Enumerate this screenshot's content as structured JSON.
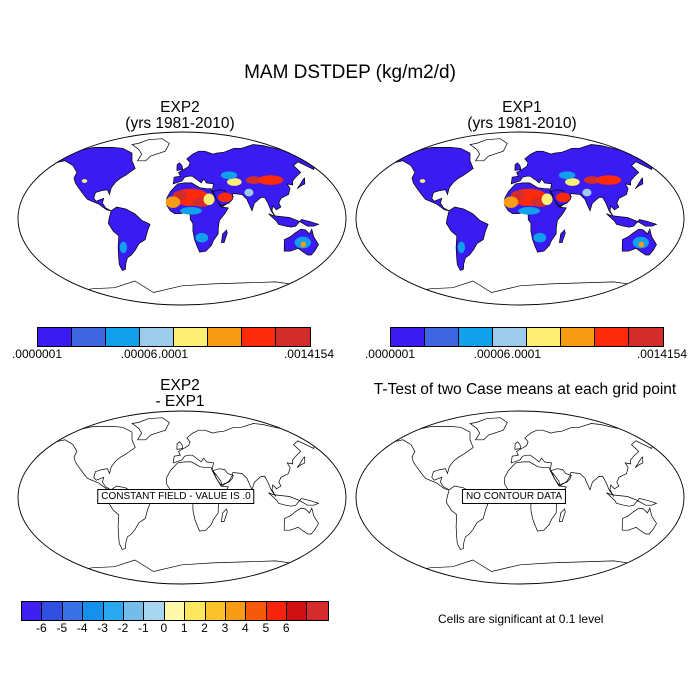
{
  "main_title": "MAM DSTDEP (kg/m2/d)",
  "panels": {
    "exp2": {
      "title1": "EXP2",
      "title2": "(yrs 1981-2010)"
    },
    "exp1": {
      "title1": "EXP1",
      "title2": "(yrs 1981-2010)"
    },
    "diff": {
      "title1": "EXP2",
      "title2": "- EXP1",
      "message": "CONSTANT FIELD - VALUE IS .0"
    },
    "ttest": {
      "title": "T-Test of two Case means at each grid point",
      "message": "NO CONTOUR DATA",
      "note": "Cells are significant at 0.1 level"
    }
  },
  "colorbar_top": {
    "colors": [
      "#3a1cf2",
      "#3f66e0",
      "#10a0ec",
      "#9ccbeb",
      "#fdee74",
      "#f99b14",
      "#fc2a0b",
      "#d32d2b"
    ],
    "labels": [
      ".0000001",
      ".00006",
      ".0001",
      ".0014154"
    ]
  },
  "colorbar_bottom": {
    "colors": [
      "#4020f0",
      "#3050e0",
      "#3a72e6",
      "#1590ec",
      "#2aa8f0",
      "#74bdea",
      "#a8d6f0",
      "#fdf9a8",
      "#fde660",
      "#fbc22c",
      "#f99b14",
      "#f55a0b",
      "#f5240a",
      "#d01010",
      "#d42c2c"
    ],
    "labels": [
      "-6",
      "-5",
      "-4",
      "-3",
      "-2",
      "-1",
      "0",
      "1",
      "2",
      "3",
      "4",
      "5",
      "6"
    ]
  }
}
